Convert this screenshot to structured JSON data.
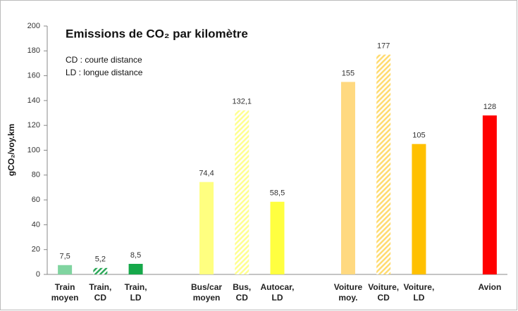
{
  "chart_data": {
    "type": "bar",
    "title": "Emissions de CO₂ par kilomètre",
    "annotations": [
      "CD : courte distance",
      "LD : longue distance"
    ],
    "y_label": "gCO₂/voy.km",
    "categories": [
      "Train\nmoyen",
      "Train,\nCD",
      "Train,\nLD",
      null,
      "Bus/car\nmoyen",
      "Bus,\nCD",
      "Autocar,\nLD",
      null,
      "Voiture\nmoy.",
      "Voiture,\nCD",
      "Voiture,\nLD",
      null,
      "Avion"
    ],
    "values": [
      7.5,
      5.2,
      8.5,
      null,
      74.4,
      132.1,
      58.5,
      null,
      155,
      177,
      105,
      null,
      128
    ],
    "value_labels": [
      "7,5",
      "5,2",
      "8,5",
      null,
      "74,4",
      "132,1",
      "58,5",
      null,
      "155",
      "177",
      "105",
      null,
      "128"
    ],
    "colors": [
      "#80d4a0",
      "#2ea85a",
      "#16a84a",
      null,
      "#ffff80",
      "#ffff90",
      "#ffff40",
      null,
      "#ffd980",
      "#ffdb70",
      "#ffc000",
      null,
      "#ff0000"
    ],
    "hatched": [
      false,
      true,
      false,
      null,
      false,
      true,
      false,
      null,
      false,
      true,
      false,
      null,
      false
    ],
    "ylim": [
      0,
      200
    ],
    "yticks": [
      0,
      20,
      40,
      60,
      80,
      100,
      120,
      140,
      160,
      180,
      200
    ],
    "grid": false
  }
}
